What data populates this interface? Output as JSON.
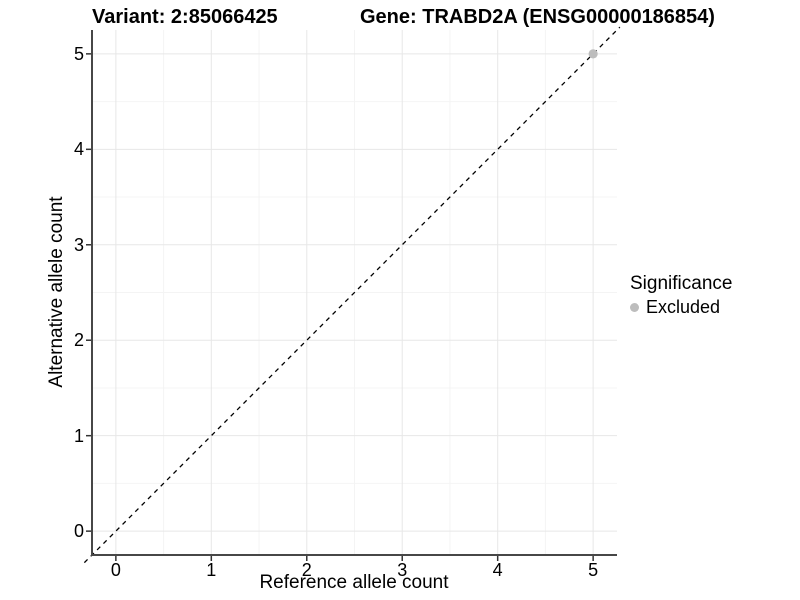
{
  "titles": {
    "variant": "Variant: 2:85066425",
    "gene": "Gene: TRABD2A (ENSG00000186854)"
  },
  "axes": {
    "x": {
      "label": "Reference allele count"
    },
    "y": {
      "label": "Alternative allele count"
    }
  },
  "legend": {
    "title": "Significance",
    "items": [
      {
        "label": "Excluded",
        "color": "#bdbdbd"
      }
    ]
  },
  "colors": {
    "background": "#ffffff",
    "grid_major": "#e7e7e7",
    "grid_minor": "#f4f4f4",
    "axis_line": "#474747",
    "tick_mark": "#333333",
    "text": "#000000",
    "identity_line": "#000000",
    "excluded_point": "#bdbdbd"
  },
  "chart_data": {
    "type": "scatter",
    "title": "Variant: 2:85066425    Gene: TRABD2A (ENSG00000186854)",
    "xlabel": "Reference allele count",
    "ylabel": "Alternative allele count",
    "xlim": [
      -0.25,
      5.25
    ],
    "ylim": [
      -0.25,
      5.25
    ],
    "xticks": [
      0,
      1,
      2,
      3,
      4,
      5
    ],
    "yticks": [
      0,
      1,
      2,
      3,
      4,
      5
    ],
    "grid": {
      "major": "integers 0-5",
      "minor": "half-integers 0.5-4.5",
      "visible": true
    },
    "identity_line": {
      "equation": "y = x",
      "style": "dashed",
      "color": "#000000"
    },
    "series": [
      {
        "name": "Excluded",
        "color": "#bdbdbd",
        "points": [
          {
            "x": 5,
            "y": 5
          }
        ]
      }
    ],
    "legend_title": "Significance",
    "legend_position": "right"
  }
}
